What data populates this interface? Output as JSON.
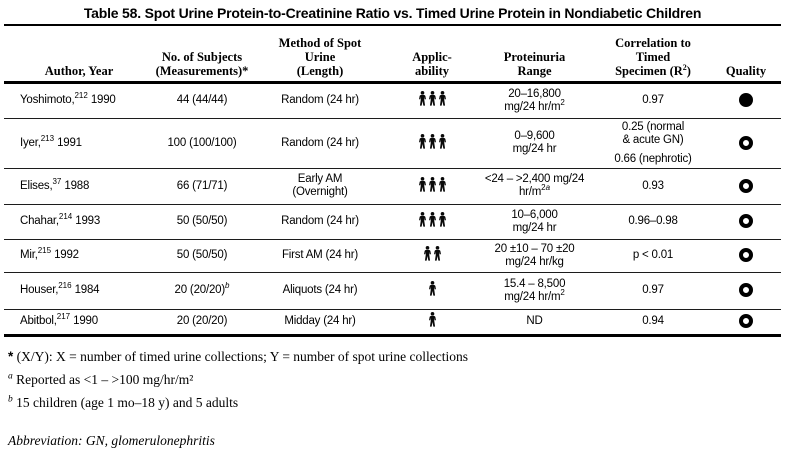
{
  "title": "Table 58. Spot Urine Protein-to-Creatinine Ratio vs. Timed Urine Protein in Nondiabetic Children",
  "table": {
    "columns": [
      {
        "id": "author",
        "label_lines": [
          [
            {
              "t": "Author, Year"
            }
          ]
        ]
      },
      {
        "id": "subjects",
        "label_lines": [
          [
            {
              "t": "No. of Subjects"
            }
          ],
          [
            {
              "t": "(Measurements)*"
            }
          ]
        ]
      },
      {
        "id": "method",
        "label_lines": [
          [
            {
              "t": "Method of Spot"
            }
          ],
          [
            {
              "t": "Urine"
            }
          ],
          [
            {
              "t": "(Length)"
            }
          ]
        ]
      },
      {
        "id": "applicability",
        "label_lines": [
          [
            {
              "t": "Applic-"
            }
          ],
          [
            {
              "t": "ability"
            }
          ]
        ]
      },
      {
        "id": "range",
        "label_lines": [
          [
            {
              "t": "Proteinuria"
            }
          ],
          [
            {
              "t": "Range"
            }
          ]
        ]
      },
      {
        "id": "correlation",
        "label_lines": [
          [
            {
              "t": "Correlation to"
            }
          ],
          [
            {
              "t": "Timed"
            }
          ],
          [
            {
              "t": "Specimen (R"
            },
            {
              "t": "2",
              "sup": true
            },
            {
              "t": ")"
            }
          ]
        ]
      },
      {
        "id": "quality",
        "label_lines": [
          [
            {
              "t": "Quality"
            }
          ]
        ]
      }
    ],
    "rows": [
      {
        "author": [
          [
            {
              "t": "Yoshimoto,"
            },
            {
              "t": "212",
              "sup": true
            },
            {
              "t": " 1990"
            }
          ]
        ],
        "subjects": [
          [
            {
              "t": "44 (44/44)"
            }
          ]
        ],
        "method": [
          [
            {
              "t": "Random (24 hr)"
            }
          ]
        ],
        "applicability": 3,
        "range": [
          [
            {
              "t": "20–16,800"
            }
          ],
          [
            {
              "t": "mg/24 hr/m"
            },
            {
              "t": "2",
              "sup": true
            }
          ]
        ],
        "correlation": [
          [
            {
              "t": "0.97"
            }
          ]
        ],
        "quality": "filled"
      },
      {
        "author": [
          [
            {
              "t": "Iyer,"
            },
            {
              "t": "213",
              "sup": true
            },
            {
              "t": " 1991"
            }
          ]
        ],
        "subjects": [
          [
            {
              "t": "100 (100/100)"
            }
          ]
        ],
        "method": [
          [
            {
              "t": "Random (24 hr)"
            }
          ]
        ],
        "applicability": 3,
        "range": [
          [
            {
              "t": "0–9,600"
            }
          ],
          [
            {
              "t": "mg/24 hr"
            }
          ]
        ],
        "correlation": [
          [
            {
              "t": "0.25 (normal"
            }
          ],
          [
            {
              "t": "& acute GN)"
            }
          ],
          [],
          [
            {
              "t": "0.66 (nephrotic)"
            }
          ]
        ],
        "quality": "open"
      },
      {
        "author": [
          [
            {
              "t": "Elises,"
            },
            {
              "t": "37",
              "sup": true
            },
            {
              "t": " 1988"
            }
          ]
        ],
        "subjects": [
          [
            {
              "t": "66 (71/71)"
            }
          ]
        ],
        "method": [
          [
            {
              "t": "Early AM"
            }
          ],
          [
            {
              "t": "(Overnight)"
            }
          ]
        ],
        "applicability": 3,
        "range": [
          [
            {
              "t": "<24 – >2,400 mg/24"
            }
          ],
          [
            {
              "t": "hr/m"
            },
            {
              "t": "2",
              "sup": true
            },
            {
              "t": "a",
              "sup": true,
              "i": true
            }
          ]
        ],
        "correlation": [
          [
            {
              "t": "0.93"
            }
          ]
        ],
        "quality": "open"
      },
      {
        "author": [
          [
            {
              "t": "Chahar,"
            },
            {
              "t": "214",
              "sup": true
            },
            {
              "t": " 1993"
            }
          ]
        ],
        "subjects": [
          [
            {
              "t": "50 (50/50)"
            }
          ]
        ],
        "method": [
          [
            {
              "t": "Random (24 hr)"
            }
          ]
        ],
        "applicability": 3,
        "range": [
          [
            {
              "t": "10–6,000"
            }
          ],
          [
            {
              "t": "mg/24 hr"
            }
          ]
        ],
        "correlation": [
          [
            {
              "t": "0.96–0.98"
            }
          ]
        ],
        "quality": "open"
      },
      {
        "author": [
          [
            {
              "t": "Mir,"
            },
            {
              "t": "215",
              "sup": true
            },
            {
              "t": " 1992"
            }
          ]
        ],
        "subjects": [
          [
            {
              "t": "50 (50/50)"
            }
          ]
        ],
        "method": [
          [
            {
              "t": "First AM (24 hr)"
            }
          ]
        ],
        "applicability": 2,
        "range": [
          [
            {
              "t": "20 ±10 – 70 ±20"
            }
          ],
          [
            {
              "t": "mg/24 hr/kg"
            }
          ]
        ],
        "correlation": [
          [
            {
              "t": "p < 0.01"
            }
          ]
        ],
        "quality": "open"
      },
      {
        "author": [
          [
            {
              "t": "Houser,"
            },
            {
              "t": "216",
              "sup": true
            },
            {
              "t": " 1984"
            }
          ]
        ],
        "subjects": [
          [
            {
              "t": "20 (20/20)"
            },
            {
              "t": "b",
              "sup": true,
              "i": true
            }
          ]
        ],
        "method": [
          [
            {
              "t": "Aliquots (24 hr)"
            }
          ]
        ],
        "applicability": 1,
        "range": [
          [
            {
              "t": "15.4 – 8,500"
            }
          ],
          [
            {
              "t": "mg/24 hr/m"
            },
            {
              "t": "2",
              "sup": true
            }
          ]
        ],
        "correlation": [
          [
            {
              "t": "0.97"
            }
          ]
        ],
        "quality": "open"
      },
      {
        "author": [
          [
            {
              "t": "Abitbol,"
            },
            {
              "t": "217",
              "sup": true
            },
            {
              "t": " 1990"
            }
          ]
        ],
        "subjects": [
          [
            {
              "t": "20 (20/20)"
            }
          ]
        ],
        "method": [
          [
            {
              "t": "Midday (24 hr)"
            }
          ]
        ],
        "applicability": 1,
        "range": [
          [
            {
              "t": "ND"
            }
          ]
        ],
        "correlation": [
          [
            {
              "t": "0.94"
            }
          ]
        ],
        "quality": "open"
      }
    ],
    "quality_legend": {
      "filled": "filled-circle",
      "open": "open-circle"
    }
  },
  "footnotes": [
    {
      "marker": "*",
      "marker_style": "bold",
      "text": "(X/Y): X = number of timed urine collections; Y = number of spot urine collections"
    },
    {
      "marker": "a",
      "marker_style": "sup-italic",
      "text": "Reported as <1 – >100 mg/hr/m²"
    },
    {
      "marker": "b",
      "marker_style": "sup-italic",
      "text": "15 children (age 1 mo–18 y) and 5 adults"
    },
    {
      "marker": "",
      "marker_style": "none",
      "style": "italic",
      "text": "Abbreviation: GN, glomerulonephritis"
    }
  ]
}
